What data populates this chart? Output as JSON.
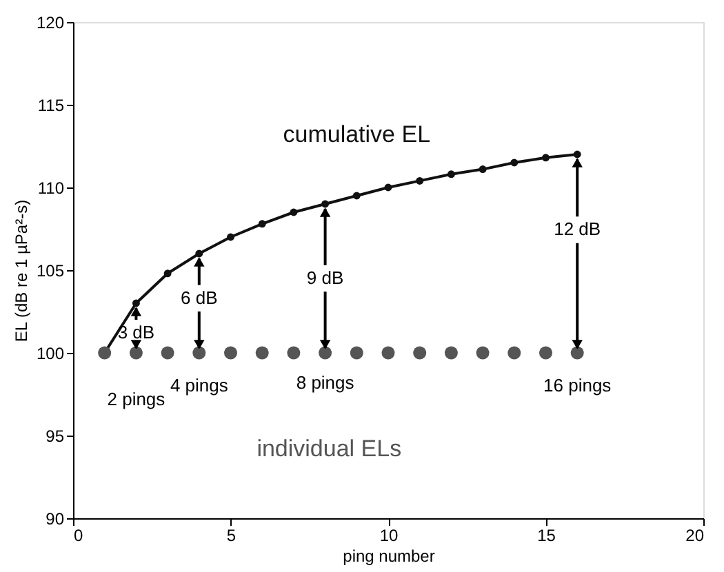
{
  "chart_data": {
    "type": "line",
    "xlabel": "ping number",
    "ylabel": "EL (dB re  1 µPa²-s)",
    "xlim": [
      0,
      20
    ],
    "xticks": [
      0,
      5,
      10,
      15,
      20
    ],
    "ylim": [
      90,
      120
    ],
    "yticks": [
      90,
      95,
      100,
      105,
      110,
      115,
      120
    ],
    "grid": false,
    "legend": false,
    "marker": "circle",
    "line_style": "solid",
    "series": [
      {
        "name": "cumulative EL",
        "color": "#111111",
        "x": [
          1,
          2,
          3,
          4,
          5,
          6,
          7,
          8,
          9,
          10,
          11,
          12,
          13,
          14,
          15,
          16
        ],
        "values": [
          100,
          103,
          104.8,
          106,
          107,
          107.8,
          108.5,
          109,
          109.5,
          110,
          110.4,
          110.8,
          111.1,
          111.5,
          111.8,
          112
        ]
      },
      {
        "name": "individual ELs",
        "type": "scatter",
        "color": "#555555",
        "x": [
          1,
          2,
          3,
          4,
          5,
          6,
          7,
          8,
          9,
          10,
          11,
          12,
          13,
          14,
          15,
          16
        ],
        "values": [
          100,
          100,
          100,
          100,
          100,
          100,
          100,
          100,
          100,
          100,
          100,
          100,
          100,
          100,
          100,
          100
        ]
      }
    ],
    "annotations": [
      {
        "text": "3 dB",
        "x": 2,
        "y": 103
      },
      {
        "text": "6 dB",
        "x": 4,
        "y": 106
      },
      {
        "text": "9 dB",
        "x": 8,
        "y": 109
      },
      {
        "text": "12 dB",
        "x": 16,
        "y": 112
      },
      {
        "text": "2 pings",
        "x": 2,
        "y": 100
      },
      {
        "text": "4 pings",
        "x": 4,
        "y": 100
      },
      {
        "text": "8 pings",
        "x": 8,
        "y": 100
      },
      {
        "text": "16 pings",
        "x": 16,
        "y": 100
      }
    ]
  }
}
